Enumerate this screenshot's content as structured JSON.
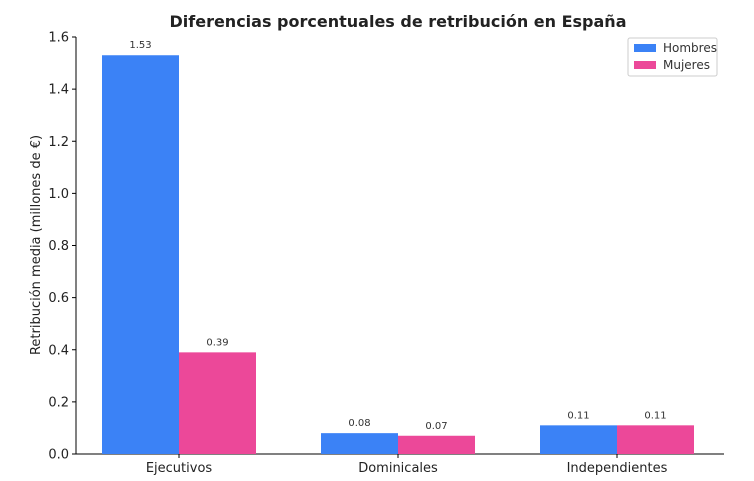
{
  "chart_data": {
    "type": "bar",
    "title": "Diferencias porcentuales de retribución en España",
    "xlabel": "",
    "ylabel": "Retribución media (millones de €)",
    "categories": [
      "Ejecutivos",
      "Dominicales",
      "Independientes"
    ],
    "series": [
      {
        "name": "Hombres",
        "color": "#3b82f6",
        "values": [
          1.53,
          0.08,
          0.11
        ],
        "labels": [
          "1.53",
          "0.08",
          "0.11"
        ]
      },
      {
        "name": "Mujeres",
        "color": "#ec4899",
        "values": [
          0.39,
          0.07,
          0.11
        ],
        "labels": [
          "0.39",
          "0.07",
          "0.11"
        ]
      }
    ],
    "ylim": [
      0,
      1.6
    ],
    "yticks": [
      0.0,
      0.2,
      0.4,
      0.6,
      0.8,
      1.0,
      1.2,
      1.4,
      1.6
    ],
    "ytick_labels": [
      "0.0",
      "0.2",
      "0.4",
      "0.6",
      "0.8",
      "1.0",
      "1.2",
      "1.4",
      "1.6"
    ],
    "grid": false,
    "legend_position": "top-right"
  }
}
